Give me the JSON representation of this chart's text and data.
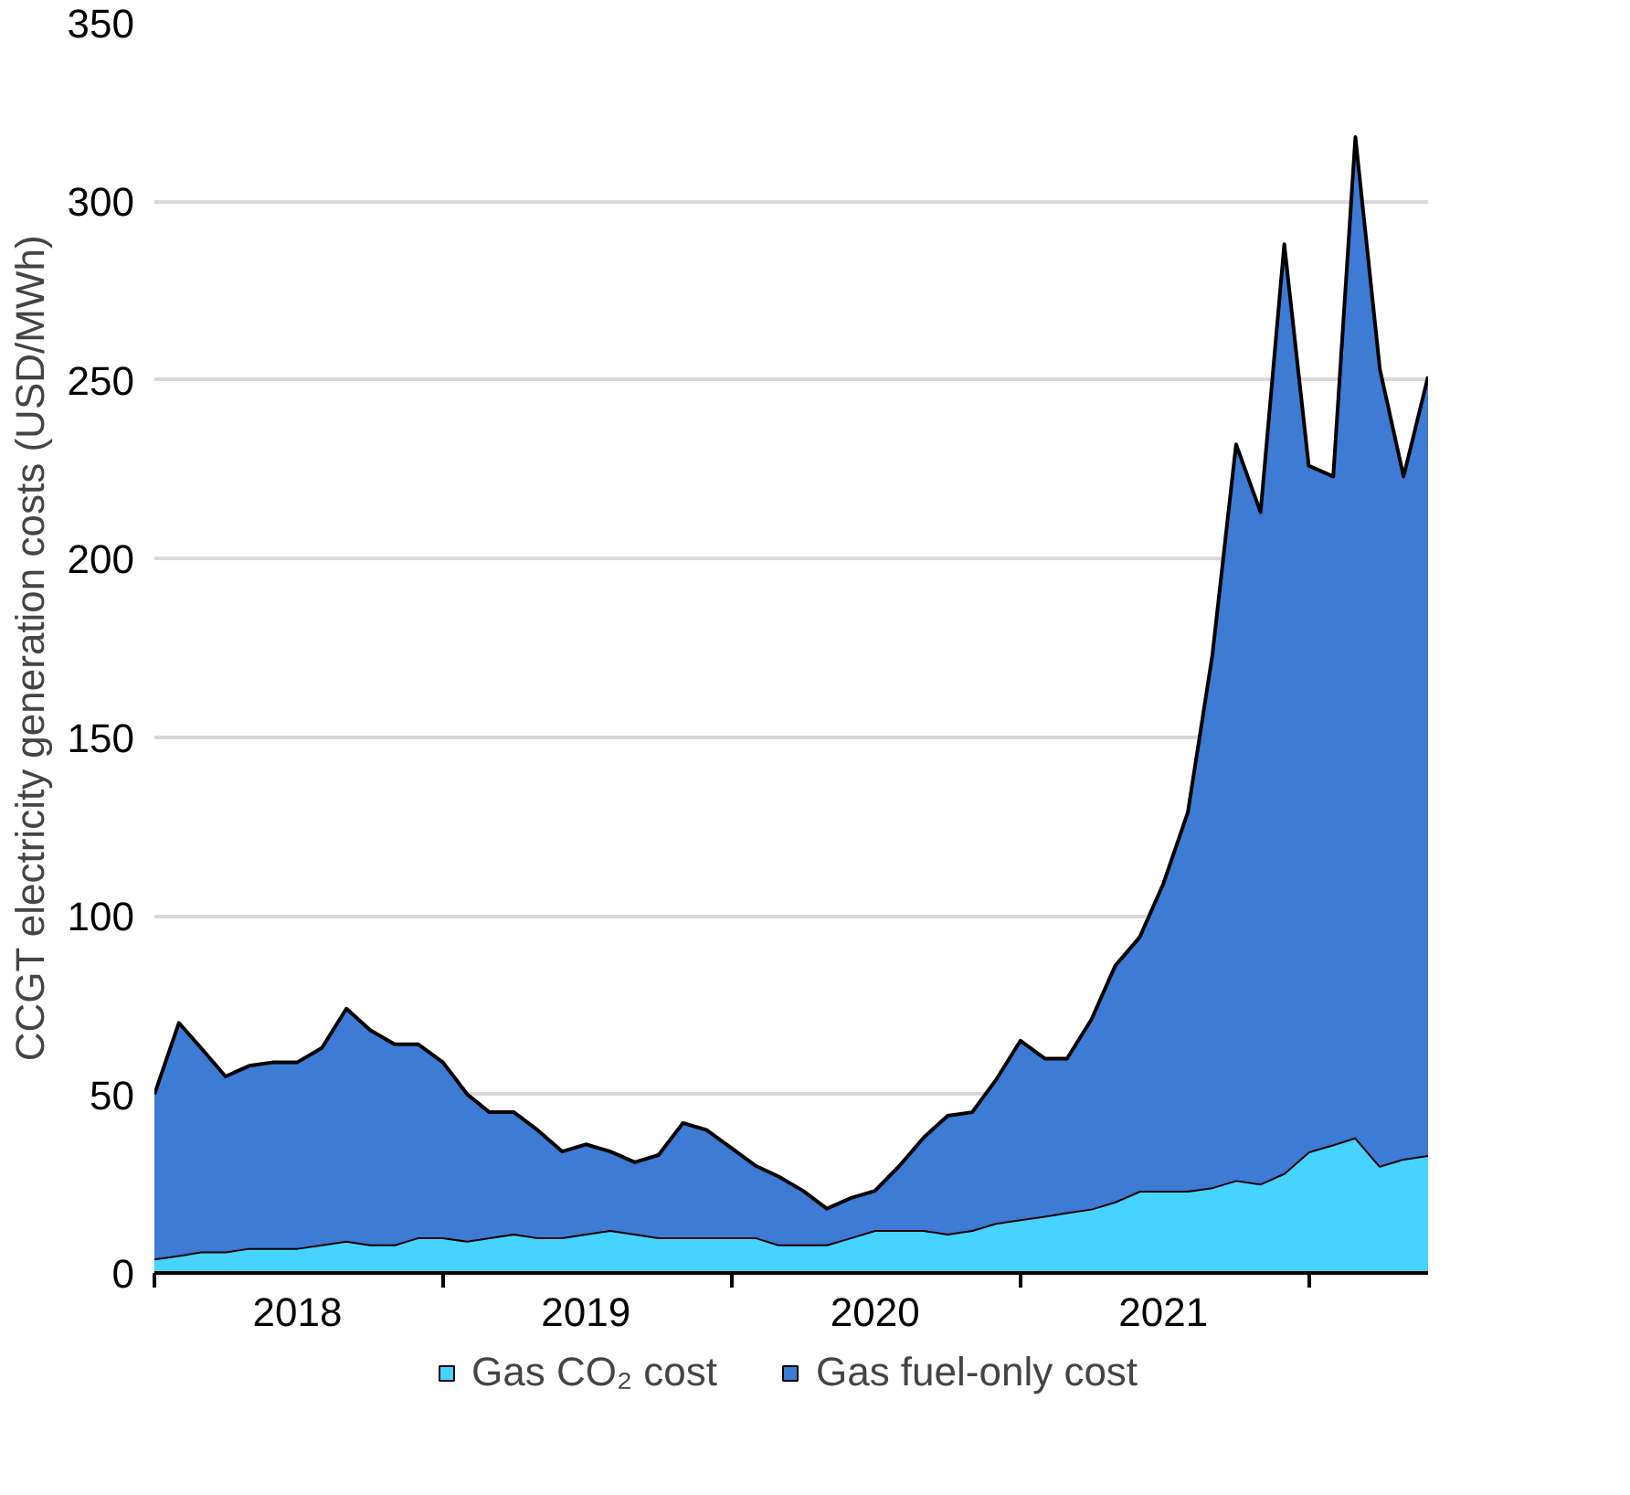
{
  "chart_data": {
    "type": "area",
    "stacked": true,
    "ylabel": "CCGT electricity generation costs (USD/MWh)",
    "x": [
      "2018-01",
      "2018-02",
      "2018-03",
      "2018-04",
      "2018-05",
      "2018-06",
      "2018-07",
      "2018-08",
      "2018-09",
      "2018-10",
      "2018-11",
      "2018-12",
      "2019-01",
      "2019-02",
      "2019-03",
      "2019-04",
      "2019-05",
      "2019-06",
      "2019-07",
      "2019-08",
      "2019-09",
      "2019-10",
      "2019-11",
      "2019-12",
      "2020-01",
      "2020-02",
      "2020-03",
      "2020-04",
      "2020-05",
      "2020-06",
      "2020-07",
      "2020-08",
      "2020-09",
      "2020-10",
      "2020-11",
      "2020-12",
      "2021-01",
      "2021-02",
      "2021-03",
      "2021-04",
      "2021-05",
      "2021-06",
      "2021-07",
      "2021-08",
      "2021-09",
      "2021-10",
      "2021-11",
      "2021-12",
      "2022-01",
      "2022-02",
      "2022-03",
      "2022-04",
      "2022-05",
      "2022-06"
    ],
    "series": [
      {
        "name": "Gas CO₂ cost",
        "color": "#47d3ff",
        "values": [
          4,
          5,
          6,
          6,
          7,
          7,
          7,
          8,
          9,
          8,
          8,
          10,
          10,
          9,
          10,
          11,
          10,
          10,
          11,
          12,
          11,
          10,
          10,
          10,
          10,
          10,
          8,
          8,
          8,
          10,
          12,
          12,
          12,
          11,
          12,
          14,
          15,
          16,
          17,
          18,
          20,
          23,
          23,
          23,
          24,
          26,
          25,
          28,
          34,
          36,
          38,
          30,
          32,
          33
        ]
      },
      {
        "name": "Gas fuel-only cost",
        "color": "#3d7bd4",
        "values": [
          46,
          65,
          57,
          49,
          51,
          52,
          52,
          55,
          65,
          60,
          56,
          54,
          49,
          41,
          35,
          34,
          30,
          24,
          25,
          22,
          20,
          23,
          32,
          30,
          25,
          20,
          19,
          15,
          10,
          11,
          11,
          18,
          26,
          33,
          33,
          40,
          50,
          44,
          43,
          53,
          66,
          71,
          86,
          106,
          149,
          206,
          188,
          260,
          192,
          187,
          280,
          223,
          191,
          218
        ]
      }
    ],
    "xlim": [
      "2018-01",
      "2022-06"
    ],
    "xticks": [
      {
        "value": "2018-01",
        "label": null
      },
      {
        "value": "2018-07",
        "label": "2018"
      },
      {
        "value": "2019-01",
        "label": null
      },
      {
        "value": "2019-07",
        "label": "2019"
      },
      {
        "value": "2020-01",
        "label": null
      },
      {
        "value": "2020-07",
        "label": "2020"
      },
      {
        "value": "2021-01",
        "label": null
      },
      {
        "value": "2021-07",
        "label": "2021"
      },
      {
        "value": "2022-01",
        "label": null
      }
    ],
    "ylim": [
      0,
      350
    ],
    "yticks": [
      0,
      50,
      100,
      150,
      200,
      250,
      300,
      350
    ],
    "grid": "y",
    "legend": "bottom"
  }
}
